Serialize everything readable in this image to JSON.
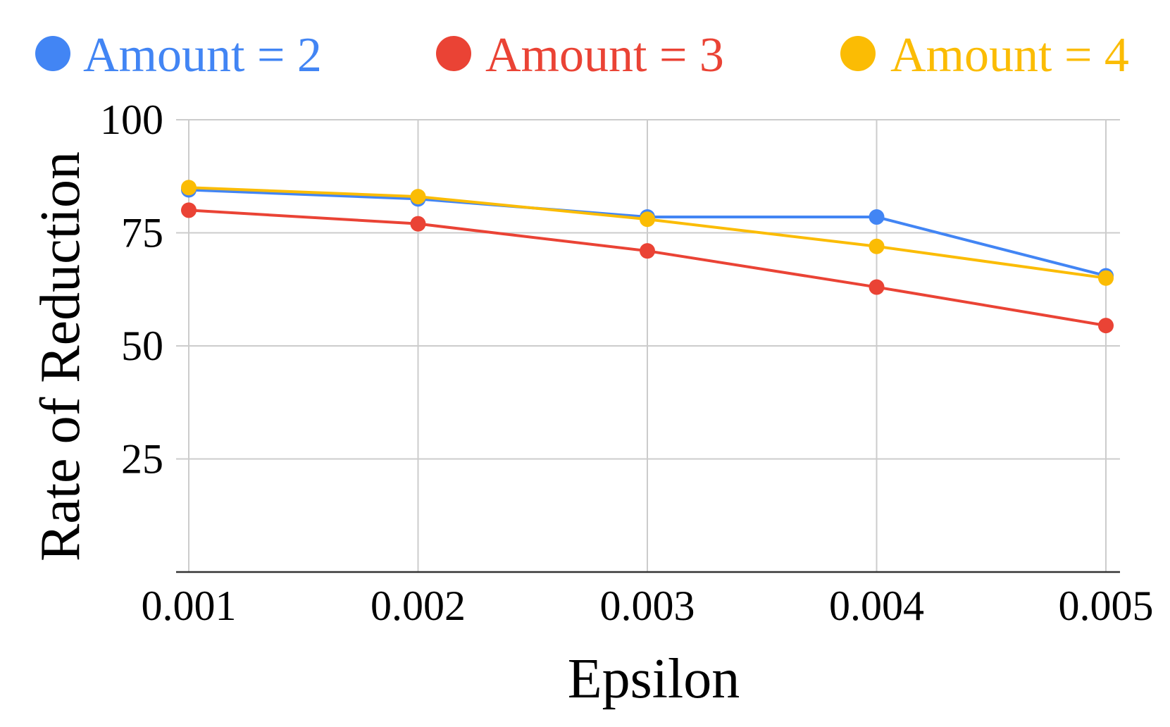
{
  "chart_data": {
    "type": "line",
    "title": "",
    "xlabel": "Epsilon",
    "ylabel": "Rate of Reduction",
    "categories": [
      "0.001",
      "0.002",
      "0.003",
      "0.004",
      "0.005"
    ],
    "yticks": [
      "25",
      "50",
      "75",
      "100"
    ],
    "ylim": [
      0,
      100
    ],
    "grid": true,
    "legend_position": "top",
    "series": [
      {
        "name": "Amount = 2",
        "color": "#4285F4",
        "values": [
          84.5,
          82.5,
          78.5,
          78.5,
          65.5
        ]
      },
      {
        "name": "Amount = 3",
        "color": "#EA4335",
        "values": [
          80,
          77,
          71,
          63,
          54.5
        ]
      },
      {
        "name": "Amount = 4",
        "color": "#FBBC04",
        "values": [
          85,
          83,
          78,
          72,
          65
        ]
      }
    ]
  }
}
